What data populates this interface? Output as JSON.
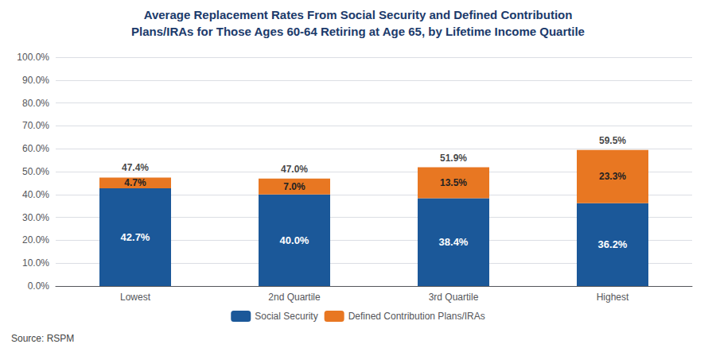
{
  "chart_data": {
    "type": "bar",
    "title": "Average Replacement Rates From Social Security and Defined Contribution",
    "subtitle": "Plans/IRAs for Those Ages 60-64 Retiring at Age 65, by Lifetime Income Quartile",
    "categories": [
      "Lowest",
      "2nd Quartile",
      "3rd Quartile",
      "Highest"
    ],
    "series": [
      {
        "name": "Social Security",
        "color": "#1B5899",
        "values": [
          42.7,
          40.0,
          38.4,
          36.2
        ],
        "value_labels": [
          "42.7%",
          "40.0%",
          "38.4%",
          "36.2%"
        ]
      },
      {
        "name": "Defined Contribution Plans/IRAs",
        "color": "#E87722",
        "values": [
          4.7,
          7.0,
          13.5,
          23.3
        ],
        "value_labels": [
          "4.7%",
          "7.0%",
          "13.5%",
          "23.3%"
        ]
      }
    ],
    "totals": [
      47.4,
      47.0,
      51.9,
      59.5
    ],
    "totals_labels": [
      "47.4%",
      "47.0%",
      "51.9%",
      "59.5%"
    ],
    "stacked": true,
    "data_labels": true,
    "ylim": [
      0,
      100
    ],
    "yticks": [
      {
        "value": 0,
        "label": "0.0%"
      },
      {
        "value": 10,
        "label": "10.0%"
      },
      {
        "value": 20,
        "label": "20.0%"
      },
      {
        "value": 30,
        "label": "30.0%"
      },
      {
        "value": 40,
        "label": "40.0%"
      },
      {
        "value": 50,
        "label": "50.0%"
      },
      {
        "value": 60,
        "label": "60.0%"
      },
      {
        "value": 70,
        "label": "70.0%"
      },
      {
        "value": 80,
        "label": "80.0%"
      },
      {
        "value": 90,
        "label": "90.0%"
      },
      {
        "value": 100,
        "label": "100.0%"
      }
    ],
    "grid": true,
    "legend": "bottom",
    "annotations": [
      "Source: RSPM"
    ]
  }
}
